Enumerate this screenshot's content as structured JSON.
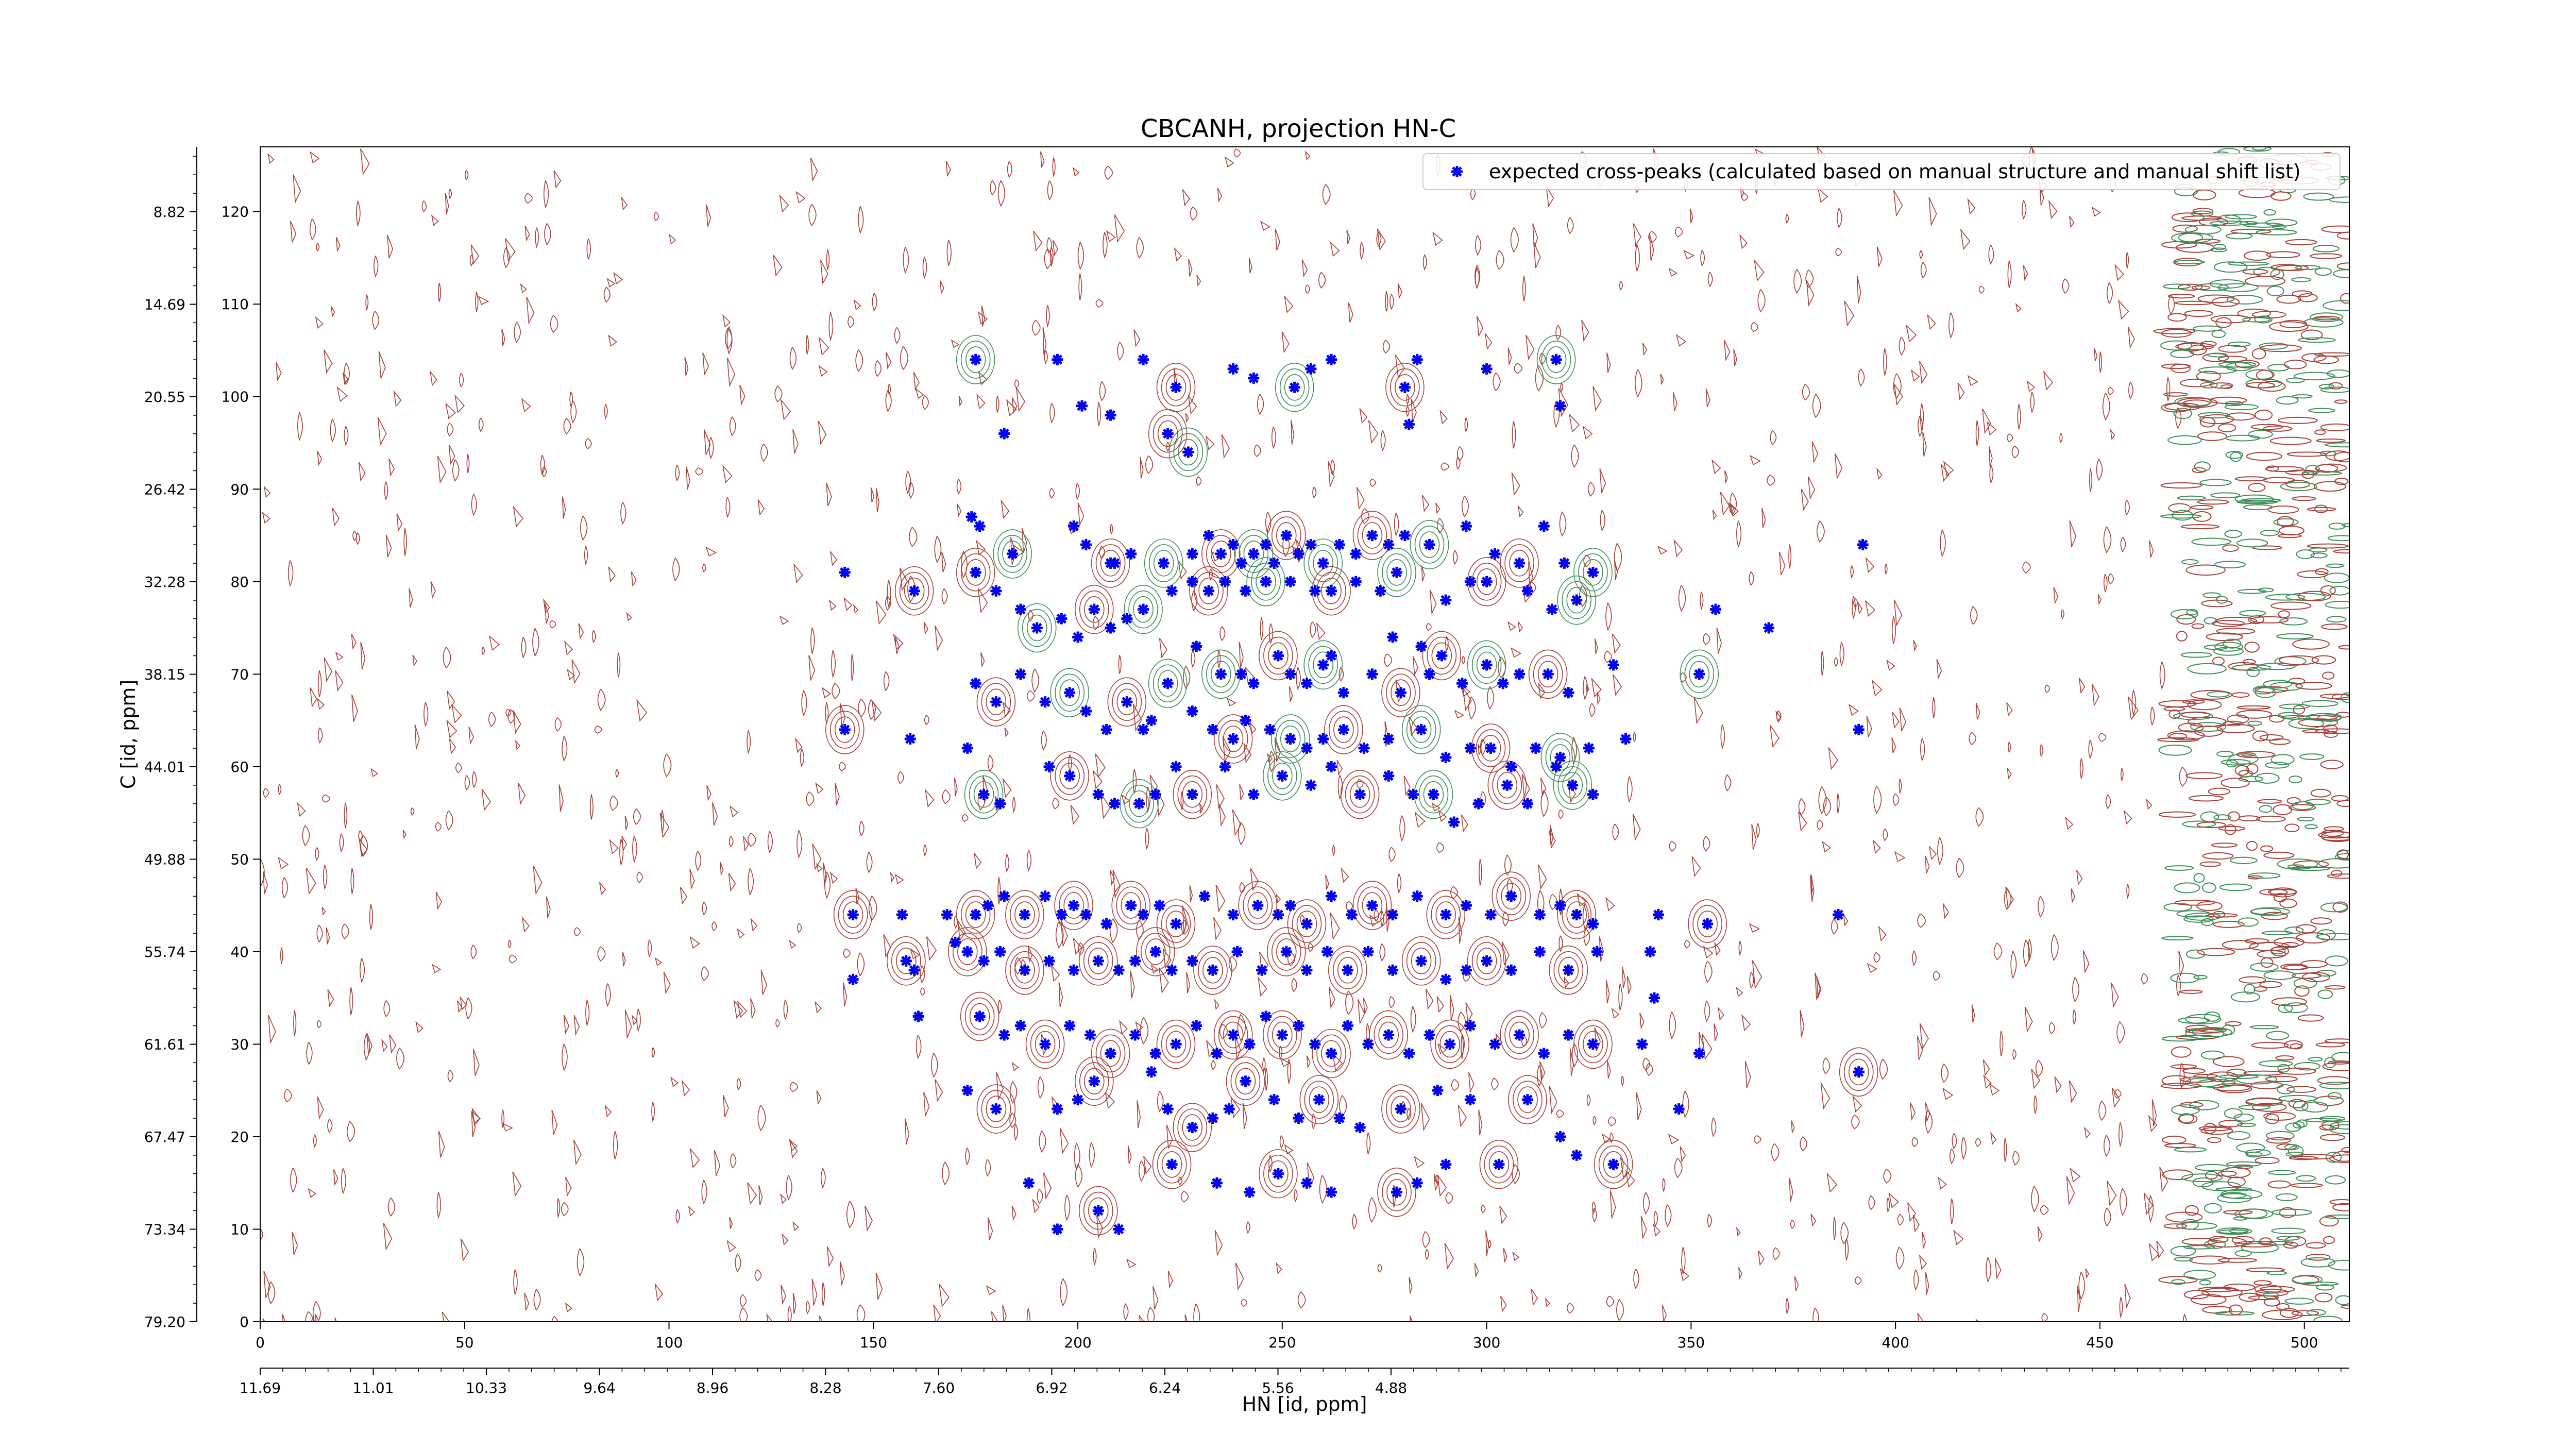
{
  "chart_data": {
    "type": "scatter",
    "title": "CBCANH, projection HN-C",
    "xlabel": "HN [id, ppm]",
    "ylabel": "C [id, ppm]",
    "xlim": [
      0,
      511
    ],
    "ylim": [
      0,
      127
    ],
    "x_ticks": [
      0,
      50,
      100,
      150,
      200,
      250,
      300,
      350,
      400,
      450,
      500
    ],
    "x_tick_labels": [
      "0",
      "50",
      "100",
      "150",
      "200",
      "250",
      "300",
      "350",
      "400",
      "450",
      "500"
    ],
    "y_ticks": [
      0,
      10,
      20,
      30,
      40,
      50,
      60,
      70,
      80,
      90,
      100,
      110,
      120
    ],
    "y_tick_labels": [
      "0",
      "10",
      "20",
      "30",
      "40",
      "50",
      "60",
      "70",
      "80",
      "90",
      "100",
      "110",
      "120"
    ],
    "secondary_x_tick_labels": [
      "11.69",
      "11.01",
      "10.33",
      "9.64",
      "8.96",
      "8.28",
      "7.60",
      "6.92",
      "6.24",
      "5.56",
      "4.88"
    ],
    "secondary_y_tick_labels": [
      "79.20",
      "73.34",
      "67.47",
      "61.61",
      "55.74",
      "49.88",
      "44.01",
      "38.15",
      "32.28",
      "26.42",
      "20.55",
      "14.69",
      "8.82"
    ],
    "grid": false,
    "legend_placement": "top-right",
    "legend": [
      "expected cross-peaks (calculated based on manual structure and manual shift list)"
    ],
    "colors": {
      "peaks": "#0000ee",
      "contour_positive": "#a8413a",
      "contour_negative": "#3f8f5a"
    },
    "series": [
      {
        "name": "expected cross-peaks (calculated based on manual structure and manual shift list)",
        "points": [
          [
            175,
            104
          ],
          [
            195,
            104
          ],
          [
            216,
            104
          ],
          [
            224,
            101
          ],
          [
            238,
            103
          ],
          [
            243,
            102
          ],
          [
            253,
            101
          ],
          [
            257,
            103
          ],
          [
            262,
            104
          ],
          [
            280,
            101
          ],
          [
            283,
            104
          ],
          [
            300,
            103
          ],
          [
            317,
            104
          ],
          [
            201,
            99
          ],
          [
            208,
            98
          ],
          [
            222,
            96
          ],
          [
            318,
            99
          ],
          [
            182,
            96
          ],
          [
            227,
            94
          ],
          [
            281,
            97
          ],
          [
            143,
            81
          ],
          [
            160,
            79
          ],
          [
            174,
            87
          ],
          [
            176,
            86
          ],
          [
            184,
            83
          ],
          [
            199,
            86
          ],
          [
            202,
            84
          ],
          [
            208,
            82
          ],
          [
            209,
            82
          ],
          [
            213,
            83
          ],
          [
            221,
            82
          ],
          [
            228,
            83
          ],
          [
            232,
            85
          ],
          [
            235,
            83
          ],
          [
            238,
            84
          ],
          [
            240,
            82
          ],
          [
            243,
            83
          ],
          [
            246,
            84
          ],
          [
            248,
            82
          ],
          [
            251,
            85
          ],
          [
            254,
            83
          ],
          [
            257,
            84
          ],
          [
            260,
            82
          ],
          [
            264,
            84
          ],
          [
            268,
            83
          ],
          [
            272,
            85
          ],
          [
            276,
            84
          ],
          [
            280,
            85
          ],
          [
            286,
            84
          ],
          [
            295,
            86
          ],
          [
            302,
            83
          ],
          [
            308,
            82
          ],
          [
            314,
            86
          ],
          [
            319,
            82
          ],
          [
            326,
            81
          ],
          [
            356,
            77
          ],
          [
            392,
            84
          ],
          [
            175,
            81
          ],
          [
            180,
            79
          ],
          [
            186,
            77
          ],
          [
            190,
            75
          ],
          [
            196,
            76
          ],
          [
            200,
            74
          ],
          [
            204,
            77
          ],
          [
            208,
            75
          ],
          [
            212,
            76
          ],
          [
            216,
            77
          ],
          [
            223,
            79
          ],
          [
            228,
            80
          ],
          [
            232,
            79
          ],
          [
            236,
            80
          ],
          [
            241,
            79
          ],
          [
            246,
            80
          ],
          [
            252,
            80
          ],
          [
            258,
            79
          ],
          [
            262,
            79
          ],
          [
            268,
            80
          ],
          [
            274,
            79
          ],
          [
            278,
            81
          ],
          [
            290,
            78
          ],
          [
            296,
            80
          ],
          [
            300,
            80
          ],
          [
            310,
            79
          ],
          [
            316,
            77
          ],
          [
            322,
            78
          ],
          [
            277,
            74
          ],
          [
            284,
            73
          ],
          [
            289,
            72
          ],
          [
            262,
            72
          ],
          [
            229,
            73
          ],
          [
            235,
            70
          ],
          [
            240,
            70
          ],
          [
            243,
            69
          ],
          [
            249,
            72
          ],
          [
            252,
            70
          ],
          [
            256,
            69
          ],
          [
            260,
            71
          ],
          [
            265,
            68
          ],
          [
            272,
            70
          ],
          [
            279,
            68
          ],
          [
            286,
            70
          ],
          [
            294,
            69
          ],
          [
            300,
            71
          ],
          [
            304,
            69
          ],
          [
            308,
            70
          ],
          [
            315,
            70
          ],
          [
            320,
            68
          ],
          [
            331,
            71
          ],
          [
            352,
            70
          ],
          [
            369,
            75
          ],
          [
            175,
            69
          ],
          [
            180,
            67
          ],
          [
            186,
            70
          ],
          [
            192,
            67
          ],
          [
            198,
            68
          ],
          [
            202,
            66
          ],
          [
            207,
            64
          ],
          [
            212,
            67
          ],
          [
            216,
            64
          ],
          [
            218,
            65
          ],
          [
            222,
            69
          ],
          [
            228,
            66
          ],
          [
            233,
            64
          ],
          [
            238,
            63
          ],
          [
            241,
            65
          ],
          [
            247,
            64
          ],
          [
            252,
            63
          ],
          [
            256,
            62
          ],
          [
            260,
            63
          ],
          [
            265,
            64
          ],
          [
            270,
            62
          ],
          [
            276,
            63
          ],
          [
            284,
            64
          ],
          [
            290,
            61
          ],
          [
            296,
            62
          ],
          [
            301,
            62
          ],
          [
            306,
            60
          ],
          [
            312,
            62
          ],
          [
            318,
            61
          ],
          [
            325,
            62
          ],
          [
            334,
            63
          ],
          [
            143,
            64
          ],
          [
            159,
            63
          ],
          [
            173,
            62
          ],
          [
            177,
            57
          ],
          [
            181,
            56
          ],
          [
            193,
            60
          ],
          [
            198,
            59
          ],
          [
            205,
            57
          ],
          [
            209,
            56
          ],
          [
            215,
            56
          ],
          [
            219,
            57
          ],
          [
            224,
            60
          ],
          [
            228,
            57
          ],
          [
            236,
            60
          ],
          [
            243,
            57
          ],
          [
            250,
            59
          ],
          [
            257,
            58
          ],
          [
            262,
            60
          ],
          [
            269,
            57
          ],
          [
            276,
            59
          ],
          [
            282,
            57
          ],
          [
            287,
            57
          ],
          [
            292,
            54
          ],
          [
            298,
            56
          ],
          [
            305,
            58
          ],
          [
            310,
            56
          ],
          [
            317,
            60
          ],
          [
            321,
            58
          ],
          [
            326,
            57
          ],
          [
            391,
            64
          ],
          [
            145,
            44
          ],
          [
            157,
            44
          ],
          [
            168,
            44
          ],
          [
            175,
            44
          ],
          [
            178,
            45
          ],
          [
            182,
            46
          ],
          [
            187,
            44
          ],
          [
            192,
            46
          ],
          [
            196,
            44
          ],
          [
            199,
            45
          ],
          [
            202,
            44
          ],
          [
            207,
            43
          ],
          [
            213,
            45
          ],
          [
            216,
            44
          ],
          [
            220,
            45
          ],
          [
            224,
            43
          ],
          [
            231,
            46
          ],
          [
            238,
            44
          ],
          [
            244,
            45
          ],
          [
            249,
            44
          ],
          [
            252,
            45
          ],
          [
            256,
            43
          ],
          [
            262,
            46
          ],
          [
            267,
            44
          ],
          [
            272,
            45
          ],
          [
            277,
            44
          ],
          [
            283,
            46
          ],
          [
            290,
            44
          ],
          [
            295,
            45
          ],
          [
            301,
            44
          ],
          [
            306,
            46
          ],
          [
            313,
            44
          ],
          [
            318,
            45
          ],
          [
            322,
            44
          ],
          [
            326,
            43
          ],
          [
            342,
            44
          ],
          [
            354,
            43
          ],
          [
            386,
            44
          ],
          [
            145,
            37
          ],
          [
            158,
            39
          ],
          [
            160,
            38
          ],
          [
            170,
            41
          ],
          [
            173,
            40
          ],
          [
            177,
            39
          ],
          [
            181,
            40
          ],
          [
            187,
            38
          ],
          [
            193,
            39
          ],
          [
            199,
            38
          ],
          [
            205,
            39
          ],
          [
            210,
            38
          ],
          [
            214,
            39
          ],
          [
            219,
            40
          ],
          [
            223,
            38
          ],
          [
            228,
            39
          ],
          [
            233,
            38
          ],
          [
            239,
            40
          ],
          [
            245,
            38
          ],
          [
            251,
            40
          ],
          [
            256,
            38
          ],
          [
            261,
            40
          ],
          [
            266,
            38
          ],
          [
            271,
            40
          ],
          [
            277,
            38
          ],
          [
            284,
            39
          ],
          [
            290,
            37
          ],
          [
            295,
            38
          ],
          [
            300,
            39
          ],
          [
            306,
            38
          ],
          [
            313,
            40
          ],
          [
            320,
            38
          ],
          [
            327,
            40
          ],
          [
            340,
            40
          ],
          [
            176,
            33
          ],
          [
            182,
            31
          ],
          [
            186,
            32
          ],
          [
            192,
            30
          ],
          [
            198,
            32
          ],
          [
            203,
            31
          ],
          [
            208,
            29
          ],
          [
            214,
            31
          ],
          [
            219,
            29
          ],
          [
            224,
            30
          ],
          [
            229,
            32
          ],
          [
            234,
            29
          ],
          [
            238,
            31
          ],
          [
            242,
            30
          ],
          [
            246,
            33
          ],
          [
            250,
            31
          ],
          [
            254,
            32
          ],
          [
            258,
            30
          ],
          [
            262,
            29
          ],
          [
            266,
            32
          ],
          [
            271,
            30
          ],
          [
            276,
            31
          ],
          [
            281,
            29
          ],
          [
            286,
            31
          ],
          [
            291,
            30
          ],
          [
            296,
            32
          ],
          [
            302,
            30
          ],
          [
            308,
            31
          ],
          [
            314,
            29
          ],
          [
            320,
            31
          ],
          [
            326,
            30
          ],
          [
            341,
            35
          ],
          [
            352,
            29
          ],
          [
            391,
            27
          ],
          [
            161,
            33
          ],
          [
            173,
            25
          ],
          [
            180,
            23
          ],
          [
            195,
            23
          ],
          [
            200,
            24
          ],
          [
            204,
            26
          ],
          [
            218,
            27
          ],
          [
            222,
            23
          ],
          [
            228,
            21
          ],
          [
            233,
            22
          ],
          [
            237,
            23
          ],
          [
            241,
            26
          ],
          [
            248,
            24
          ],
          [
            254,
            22
          ],
          [
            259,
            24
          ],
          [
            264,
            22
          ],
          [
            269,
            21
          ],
          [
            279,
            23
          ],
          [
            288,
            25
          ],
          [
            296,
            24
          ],
          [
            310,
            24
          ],
          [
            318,
            20
          ],
          [
            322,
            18
          ],
          [
            331,
            17
          ],
          [
            338,
            30
          ],
          [
            347,
            23
          ],
          [
            223,
            17
          ],
          [
            234,
            15
          ],
          [
            242,
            14
          ],
          [
            249,
            16
          ],
          [
            256,
            15
          ],
          [
            262,
            14
          ],
          [
            278,
            14
          ],
          [
            283,
            15
          ],
          [
            290,
            17
          ],
          [
            303,
            17
          ],
          [
            188,
            15
          ],
          [
            195,
            10
          ],
          [
            205,
            12
          ],
          [
            210,
            10
          ]
        ]
      }
    ]
  }
}
